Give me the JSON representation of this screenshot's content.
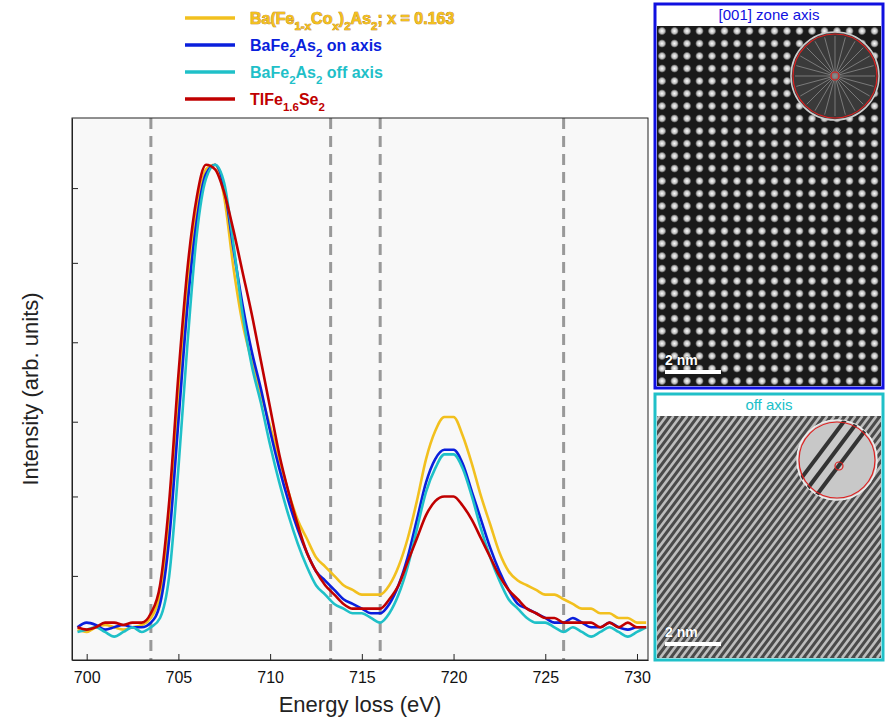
{
  "chart_data": {
    "type": "line",
    "x_label": "Energy loss (eV)",
    "y_label": "Intensity (arb. units)",
    "xlim": [
      699.2,
      730.6
    ],
    "ylim": [
      -0.06,
      1.1
    ],
    "xticks": [
      700,
      705,
      710,
      715,
      720,
      725,
      730
    ],
    "yticks": [
      0.12,
      0.29,
      0.45,
      0.62,
      0.79,
      0.95
    ],
    "tick_labels": "x",
    "grid": false,
    "legend": "top",
    "vlines": [
      703.5,
      713.3,
      716,
      726
    ],
    "x": [
      699.5,
      700,
      700.5,
      701,
      701.5,
      702,
      702.5,
      703,
      703.5,
      704,
      704.5,
      705,
      705.5,
      706,
      706.5,
      707,
      707.5,
      708,
      708.5,
      709,
      709.5,
      710,
      710.5,
      711,
      711.5,
      712,
      712.5,
      713,
      713.5,
      714,
      714.5,
      715,
      715.5,
      716,
      716.5,
      717,
      717.5,
      718,
      718.5,
      719,
      719.5,
      720,
      720.5,
      721,
      721.5,
      722,
      722.5,
      723,
      723.5,
      724,
      724.5,
      725,
      725.5,
      726,
      726.5,
      727,
      727.5,
      728,
      728.5,
      729,
      729.5,
      730,
      730.5
    ],
    "series": [
      {
        "name": "Ba(Fe1-xCox)2As2; x = 0.163",
        "color": "#f2c01e",
        "values": [
          0.005,
          0.0,
          0.01,
          0.015,
          0.01,
          0.005,
          0.01,
          0.015,
          0.03,
          0.08,
          0.24,
          0.5,
          0.74,
          0.9,
          0.99,
          1.0,
          0.93,
          0.78,
          0.66,
          0.58,
          0.51,
          0.44,
          0.37,
          0.3,
          0.24,
          0.2,
          0.16,
          0.14,
          0.12,
          0.1,
          0.09,
          0.08,
          0.08,
          0.08,
          0.1,
          0.14,
          0.2,
          0.28,
          0.37,
          0.43,
          0.46,
          0.46,
          0.42,
          0.36,
          0.29,
          0.23,
          0.17,
          0.13,
          0.11,
          0.1,
          0.09,
          0.08,
          0.08,
          0.07,
          0.06,
          0.05,
          0.05,
          0.04,
          0.04,
          0.03,
          0.03,
          0.02,
          0.02
        ]
      },
      {
        "name": "BaFe2As2 on axis",
        "color": "#0a1fdc",
        "values": [
          0.01,
          0.02,
          0.015,
          0.005,
          0.01,
          0.015,
          0.01,
          0.01,
          0.02,
          0.06,
          0.2,
          0.45,
          0.7,
          0.88,
          0.98,
          1.0,
          0.95,
          0.82,
          0.7,
          0.6,
          0.52,
          0.43,
          0.35,
          0.28,
          0.22,
          0.17,
          0.13,
          0.11,
          0.09,
          0.07,
          0.06,
          0.05,
          0.04,
          0.04,
          0.06,
          0.1,
          0.16,
          0.24,
          0.32,
          0.37,
          0.39,
          0.39,
          0.36,
          0.3,
          0.24,
          0.18,
          0.13,
          0.09,
          0.06,
          0.05,
          0.04,
          0.03,
          0.02,
          0.02,
          0.03,
          0.02,
          0.01,
          0.01,
          0.02,
          0.01,
          0.005,
          0.01,
          0.01
        ]
      },
      {
        "name": "BaFe2As2 off axis",
        "color": "#1fc0c8",
        "values": [
          0.0,
          0.005,
          0.01,
          0.0,
          -0.01,
          0.0,
          0.01,
          0.0,
          0.01,
          0.03,
          0.12,
          0.35,
          0.62,
          0.85,
          0.97,
          1.0,
          0.96,
          0.83,
          0.68,
          0.57,
          0.49,
          0.4,
          0.32,
          0.25,
          0.19,
          0.14,
          0.1,
          0.08,
          0.06,
          0.05,
          0.04,
          0.04,
          0.03,
          0.02,
          0.04,
          0.08,
          0.14,
          0.22,
          0.3,
          0.35,
          0.38,
          0.38,
          0.35,
          0.29,
          0.22,
          0.16,
          0.11,
          0.07,
          0.05,
          0.03,
          0.02,
          0.02,
          0.01,
          0.0,
          0.01,
          0.0,
          -0.01,
          0.0,
          0.01,
          0.0,
          -0.01,
          0.0,
          0.01
        ]
      },
      {
        "name": "TlFe1.6Se2",
        "color": "#c00000",
        "values": [
          0.01,
          0.005,
          0.01,
          0.02,
          0.02,
          0.015,
          0.02,
          0.02,
          0.04,
          0.1,
          0.28,
          0.55,
          0.78,
          0.93,
          1.0,
          0.99,
          0.94,
          0.86,
          0.77,
          0.68,
          0.58,
          0.48,
          0.38,
          0.3,
          0.23,
          0.17,
          0.13,
          0.1,
          0.08,
          0.06,
          0.05,
          0.05,
          0.05,
          0.05,
          0.07,
          0.1,
          0.15,
          0.2,
          0.25,
          0.28,
          0.29,
          0.29,
          0.27,
          0.24,
          0.2,
          0.16,
          0.12,
          0.09,
          0.07,
          0.05,
          0.04,
          0.03,
          0.03,
          0.02,
          0.02,
          0.02,
          0.02,
          0.01,
          0.02,
          0.01,
          0.02,
          0.01,
          0.01
        ]
      }
    ]
  },
  "images": [
    {
      "title": "[001] zone axis",
      "scale_bar": "2 nm",
      "color": "#1010e0"
    },
    {
      "title": "off axis",
      "scale_bar": "2 nm",
      "color": "#20c0c8"
    }
  ]
}
